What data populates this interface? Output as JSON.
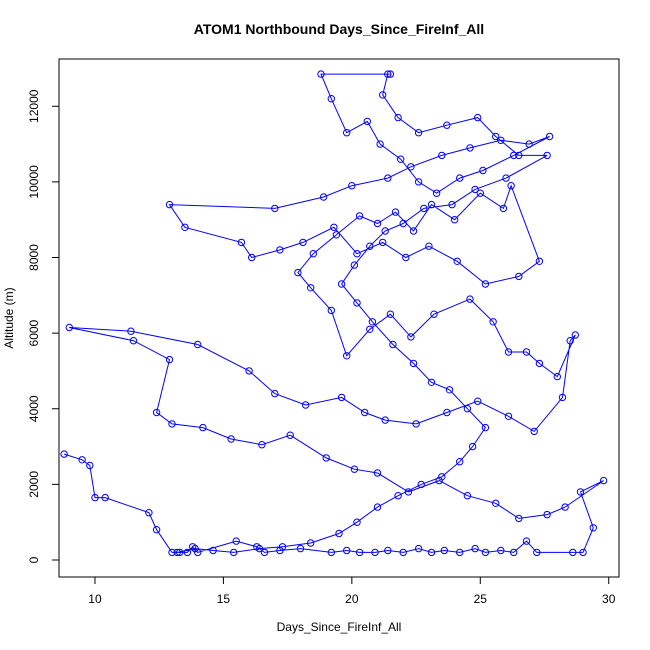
{
  "chart_data": {
    "type": "line",
    "title": "ATOM1 Northbound Days_Since_FireInf_All",
    "xlabel": "Days_Since_FireInf_All",
    "ylabel": "Altitude (m)",
    "xlim": [
      8.6,
      30.4
    ],
    "ylim": [
      -450,
      13250
    ],
    "xticks": [
      10,
      15,
      20,
      25,
      30
    ],
    "yticks": [
      0,
      2000,
      4000,
      6000,
      8000,
      10000,
      12000
    ],
    "marker": "open-circle",
    "line_color": "#0000ff",
    "grid": false,
    "series": [
      {
        "values": [
          [
            8.8,
            2800
          ],
          [
            9.5,
            2650
          ],
          [
            9.8,
            2500
          ],
          [
            10.0,
            1650
          ],
          [
            10.4,
            1650
          ],
          [
            12.1,
            1250
          ],
          [
            12.4,
            800
          ],
          [
            13.0,
            200
          ],
          [
            13.3,
            200
          ],
          [
            13.6,
            200
          ],
          [
            13.8,
            350
          ],
          [
            14.0,
            200
          ],
          [
            15.5,
            500
          ],
          [
            16.3,
            350
          ],
          [
            16.6,
            200
          ],
          [
            17.2,
            250
          ],
          [
            18.0,
            300
          ],
          [
            19.2,
            200
          ],
          [
            19.8,
            250
          ],
          [
            20.3,
            200
          ],
          [
            20.9,
            200
          ],
          [
            21.4,
            250
          ],
          [
            22.0,
            200
          ],
          [
            22.6,
            300
          ],
          [
            23.1,
            200
          ],
          [
            23.6,
            250
          ],
          [
            24.2,
            200
          ],
          [
            24.8,
            300
          ],
          [
            25.2,
            200
          ],
          [
            25.8,
            250
          ],
          [
            26.3,
            200
          ],
          [
            26.8,
            500
          ],
          [
            27.2,
            200
          ],
          [
            28.6,
            200
          ],
          [
            29.0,
            200
          ],
          [
            29.4,
            850
          ],
          [
            28.9,
            1800
          ],
          [
            29.8,
            2100
          ],
          [
            28.3,
            1400
          ],
          [
            27.6,
            1200
          ],
          [
            26.5,
            1100
          ],
          [
            25.6,
            1500
          ],
          [
            24.5,
            1700
          ],
          [
            23.4,
            2100
          ],
          [
            22.2,
            1800
          ],
          [
            21.0,
            2300
          ],
          [
            20.1,
            2400
          ],
          [
            19.0,
            2700
          ],
          [
            17.6,
            3300
          ],
          [
            16.5,
            3050
          ],
          [
            15.3,
            3200
          ],
          [
            14.2,
            3500
          ],
          [
            13.0,
            3600
          ],
          [
            12.4,
            3900
          ],
          [
            12.9,
            5300
          ],
          [
            11.5,
            5800
          ],
          [
            9.0,
            6150
          ],
          [
            11.4,
            6050
          ],
          [
            14.0,
            5700
          ],
          [
            16.0,
            5000
          ],
          [
            17.0,
            4400
          ],
          [
            18.2,
            4100
          ],
          [
            19.6,
            4300
          ],
          [
            20.5,
            3900
          ],
          [
            21.3,
            3700
          ],
          [
            22.5,
            3600
          ],
          [
            23.7,
            3900
          ],
          [
            24.9,
            4200
          ],
          [
            26.1,
            3800
          ],
          [
            27.1,
            3400
          ],
          [
            28.2,
            4300
          ],
          [
            28.5,
            5800
          ],
          [
            28.7,
            5950
          ],
          [
            28.0,
            4850
          ],
          [
            27.3,
            5200
          ],
          [
            26.8,
            5500
          ],
          [
            26.1,
            5500
          ],
          [
            25.5,
            6300
          ],
          [
            24.6,
            6900
          ],
          [
            23.2,
            6500
          ],
          [
            22.3,
            5900
          ],
          [
            21.5,
            6500
          ],
          [
            20.7,
            6100
          ],
          [
            19.8,
            5400
          ],
          [
            19.2,
            6600
          ],
          [
            18.4,
            7200
          ],
          [
            17.9,
            7600
          ],
          [
            18.5,
            8100
          ],
          [
            19.4,
            8600
          ],
          [
            20.3,
            9100
          ],
          [
            21.0,
            8900
          ],
          [
            21.7,
            9200
          ],
          [
            22.4,
            8700
          ],
          [
            23.1,
            9400
          ],
          [
            24.0,
            9000
          ],
          [
            25.0,
            9700
          ],
          [
            25.9,
            9300
          ],
          [
            26.2,
            9900
          ],
          [
            27.3,
            7900
          ],
          [
            26.5,
            7500
          ],
          [
            25.2,
            7300
          ],
          [
            24.1,
            7900
          ],
          [
            23.0,
            8300
          ],
          [
            22.1,
            8000
          ],
          [
            21.2,
            8400
          ],
          [
            20.2,
            8100
          ],
          [
            19.3,
            8800
          ],
          [
            18.1,
            8400
          ],
          [
            17.2,
            8200
          ],
          [
            16.1,
            8000
          ],
          [
            15.7,
            8400
          ],
          [
            13.5,
            8800
          ],
          [
            12.9,
            9400
          ],
          [
            17.0,
            9300
          ],
          [
            18.9,
            9600
          ],
          [
            20.0,
            9900
          ],
          [
            21.4,
            10100
          ],
          [
            22.3,
            10400
          ],
          [
            23.5,
            10700
          ],
          [
            24.6,
            10900
          ],
          [
            25.8,
            11100
          ],
          [
            26.9,
            11000
          ],
          [
            27.7,
            11200
          ],
          [
            26.3,
            10700
          ],
          [
            25.1,
            10300
          ],
          [
            24.2,
            10100
          ],
          [
            23.3,
            9700
          ],
          [
            22.6,
            10000
          ],
          [
            21.9,
            10600
          ],
          [
            21.1,
            11000
          ],
          [
            20.6,
            11600
          ],
          [
            19.8,
            11300
          ],
          [
            19.2,
            12200
          ],
          [
            18.8,
            12850
          ],
          [
            21.5,
            12850
          ],
          [
            21.4,
            12850
          ],
          [
            21.2,
            12300
          ],
          [
            21.8,
            11700
          ],
          [
            22.6,
            11300
          ],
          [
            23.7,
            11500
          ],
          [
            24.9,
            11700
          ],
          [
            25.6,
            11200
          ],
          [
            26.5,
            10700
          ],
          [
            27.6,
            10700
          ],
          [
            26.0,
            10100
          ],
          [
            24.8,
            9800
          ],
          [
            23.9,
            9400
          ],
          [
            22.8,
            9300
          ],
          [
            22.0,
            8900
          ],
          [
            21.3,
            8700
          ],
          [
            20.7,
            8300
          ],
          [
            20.1,
            7800
          ],
          [
            19.6,
            7300
          ],
          [
            20.2,
            6800
          ],
          [
            20.8,
            6300
          ],
          [
            21.6,
            5700
          ],
          [
            22.4,
            5200
          ],
          [
            23.1,
            4700
          ],
          [
            23.8,
            4500
          ],
          [
            24.5,
            4000
          ],
          [
            25.2,
            3500
          ],
          [
            24.7,
            3000
          ],
          [
            24.2,
            2600
          ],
          [
            23.5,
            2200
          ],
          [
            22.7,
            2000
          ],
          [
            21.8,
            1700
          ],
          [
            21.0,
            1400
          ],
          [
            20.2,
            1000
          ],
          [
            19.5,
            700
          ],
          [
            18.4,
            450
          ],
          [
            17.3,
            350
          ],
          [
            16.4,
            300
          ],
          [
            15.4,
            200
          ],
          [
            14.6,
            250
          ],
          [
            13.9,
            300
          ],
          [
            13.2,
            200
          ]
        ]
      }
    ]
  }
}
